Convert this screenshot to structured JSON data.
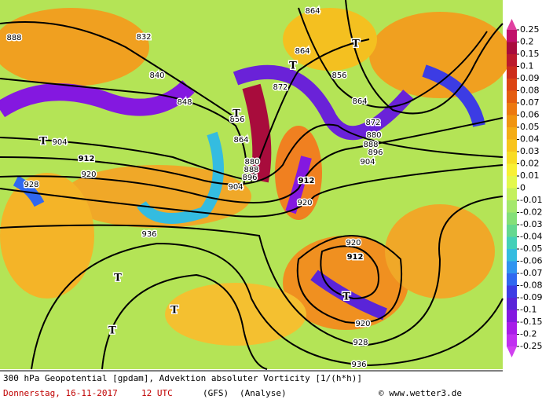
{
  "map": {
    "contour_labels": [
      "888",
      "832",
      "840",
      "848",
      "856",
      "864",
      "872",
      "880",
      "888",
      "896",
      "904",
      "912",
      "920",
      "928",
      "936",
      "912",
      "920",
      "864",
      "864",
      "856",
      "864",
      "872",
      "880",
      "888",
      "896",
      "904",
      "904",
      "920",
      "912",
      "920",
      "928",
      "936"
    ],
    "pressure_markers": [
      "T",
      "T",
      "T",
      "T",
      "T",
      "T",
      "T",
      "T"
    ]
  },
  "colorbar": {
    "ticks": [
      0.25,
      0.2,
      0.15,
      0.1,
      0.09,
      0.08,
      0.07,
      0.06,
      0.05,
      0.04,
      0.03,
      0.02,
      0.01,
      0,
      -0.01,
      -0.02,
      -0.03,
      -0.04,
      -0.05,
      -0.06,
      -0.07,
      -0.08,
      -0.09,
      -0.1,
      -0.15,
      -0.2,
      -0.25
    ],
    "colors": [
      "#c0106a",
      "#a80c3c",
      "#bc1a2c",
      "#cc2c1c",
      "#dc4414",
      "#e45c10",
      "#ec7810",
      "#f09410",
      "#f4ac14",
      "#f8c41c",
      "#f8dc24",
      "#f8f034",
      "#e4f84c",
      "#c4f05c",
      "#a4e86c",
      "#84e078",
      "#64d890",
      "#44d0b8",
      "#34bce0",
      "#3094f0",
      "#3068f0",
      "#3c3ce4",
      "#5a24d8",
      "#8418e0",
      "#a81ce8",
      "#c030f0"
    ]
  },
  "footer": {
    "title": "300 hPa Geopotential [gpdam], Advektion absoluter Vorticity [1/(h*h)]",
    "date": "Donnerstag, 16-11-2017",
    "time": "12 UTC",
    "model": "(GFS)",
    "run": "(Analyse)",
    "credit": "© www.wetter3.de"
  }
}
